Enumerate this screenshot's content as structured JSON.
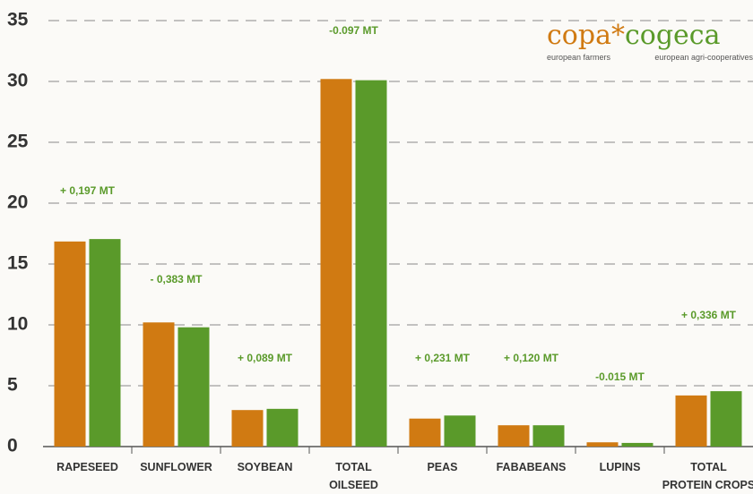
{
  "chart_data": {
    "type": "bar",
    "categories": [
      "RAPESEED",
      "SUNFLOWER",
      "SOYBEAN",
      "TOTAL\nOILSEED",
      "PEAS",
      "FABABEANS",
      "LUPINS",
      "TOTAL\nPROTEIN CROPS"
    ],
    "series": [
      {
        "color": "#d07a12",
        "values": [
          16.85,
          10.2,
          3.0,
          30.2,
          2.3,
          1.75,
          0.35,
          4.2
        ]
      },
      {
        "color": "#5a9a2a",
        "values": [
          17.05,
          9.8,
          3.1,
          30.1,
          2.55,
          1.75,
          0.3,
          4.55
        ]
      }
    ],
    "annotations": [
      "+ 0,197 MT",
      "- 0,383 MT",
      "+ 0,089 MT",
      "-0.097 MT",
      "+ 0,231 MT",
      "+ 0,120 MT",
      "-0.015 MT",
      "+ 0,336 MT"
    ],
    "ylim": [
      0,
      35
    ],
    "yticks": [
      0,
      5,
      10,
      15,
      20,
      25,
      30,
      35
    ],
    "grid": true
  },
  "logo": {
    "left": "copa",
    "right": "cogeca",
    "left_sub": "european farmers",
    "right_sub": "european agri-cooperatives"
  }
}
